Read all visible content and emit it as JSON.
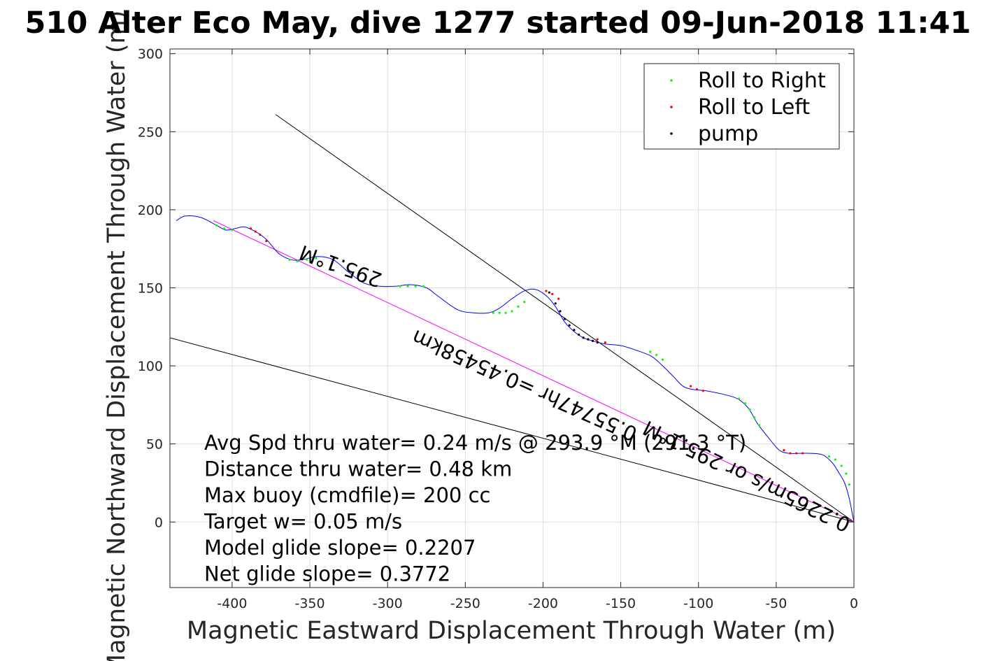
{
  "chart_data": {
    "type": "scatter",
    "title": "510 Alter Eco May, dive 1277 started 09-Jun-2018 11:41",
    "xlabel": "Magnetic Eastward Displacement Through Water (m)",
    "ylabel": "Magnetic Northward Displacement Through Water (m)",
    "xlim": [
      -440,
      0
    ],
    "ylim": [
      -42,
      303
    ],
    "xticks": [
      -400,
      -350,
      -300,
      -250,
      -200,
      -150,
      -100,
      -50,
      0
    ],
    "yticks": [
      0,
      50,
      100,
      150,
      200,
      250,
      300
    ],
    "grid": true,
    "legend_position": "top-right",
    "legend": [
      {
        "label": "Roll to Right",
        "color": "#00ff00"
      },
      {
        "label": "Roll to Left",
        "color": "#ff0000"
      },
      {
        "label": "pump",
        "color": "#000000"
      }
    ],
    "series": [
      {
        "name": "track",
        "kind": "line",
        "color": "#0000ff",
        "x": [
          -436,
          -430,
          -420,
          -410,
          -404,
          -398,
          -392,
          -385,
          -378,
          -370,
          -362,
          -355,
          -345,
          -335,
          -325,
          -315,
          -305,
          -295,
          -285,
          -275,
          -268,
          -255,
          -245,
          -235,
          -228,
          -220,
          -212,
          -205,
          -198,
          -192,
          -186,
          -180,
          -174,
          -168,
          -160,
          -150,
          -140,
          -130,
          -122,
          -116,
          -110,
          -104,
          -95,
          -85,
          -75,
          -68,
          -62,
          -55,
          -48,
          -42,
          -35,
          -28,
          -20,
          -14,
          -10,
          -6,
          -3,
          -1,
          0
        ],
        "y": [
          193,
          196,
          195,
          190,
          187,
          188,
          189,
          186,
          181,
          172,
          168,
          168,
          170,
          168,
          160,
          153,
          151,
          151,
          152,
          150,
          145,
          136,
          134,
          134,
          137,
          143,
          148,
          149,
          145,
          138,
          128,
          122,
          118,
          116,
          114,
          113,
          110,
          106,
          99,
          93,
          87,
          85,
          84,
          82,
          79,
          73,
          63,
          54,
          46,
          44,
          44,
          44,
          43,
          38,
          32,
          25,
          15,
          5,
          0
        ]
      },
      {
        "name": "Roll to Right",
        "kind": "points",
        "color": "#00ff00",
        "x": [
          -410,
          -405,
          -400,
          -363,
          -358,
          -352,
          -346,
          -292,
          -287,
          -282,
          -277,
          -232,
          -228,
          -224,
          -220,
          -216,
          -212,
          -131,
          -127,
          -123,
          -74,
          -70,
          -67,
          -64,
          -61,
          -16,
          -12,
          -8,
          -5,
          -3
        ],
        "y": [
          190,
          188,
          187,
          168,
          167,
          168,
          169,
          151,
          151,
          151,
          151,
          134,
          134,
          134,
          135,
          138,
          141,
          109,
          107,
          104,
          79,
          76,
          72,
          67,
          62,
          42,
          40,
          36,
          31,
          24
        ]
      },
      {
        "name": "Roll to Left",
        "kind": "points",
        "color": "#ff0000",
        "x": [
          -388,
          -385,
          -382,
          -378,
          -198,
          -194,
          -190,
          -165,
          -160,
          -105,
          -101,
          -97,
          -45,
          -41,
          -37,
          -33
        ],
        "y": [
          188,
          186,
          184,
          180,
          148,
          146,
          143,
          117,
          115,
          87,
          85,
          84,
          46,
          44,
          44,
          44
        ],
        "extra_line": {
          "x": [
            -412,
            0
          ],
          "y": [
            193,
            0
          ],
          "color": "#ff00ff"
        }
      },
      {
        "name": "pump",
        "kind": "points",
        "color": "#000000",
        "x": [
          -196,
          -192,
          -189,
          -186,
          -183,
          -180,
          -177,
          -174,
          -171,
          -168,
          -165
        ],
        "y": [
          147,
          140,
          135,
          130,
          126,
          123,
          120,
          118,
          117,
          116,
          115
        ]
      },
      {
        "name": "line1",
        "kind": "line",
        "color": "#000000",
        "x": [
          -372,
          0
        ],
        "y": [
          261,
          0
        ]
      },
      {
        "name": "line2",
        "kind": "line",
        "color": "#000000",
        "x": [
          -440,
          0
        ],
        "y": [
          118,
          0
        ]
      }
    ],
    "annotations": {
      "heading_label": "295.1°M",
      "track_label": "0.55747hr =0.45458km",
      "speed_label": "0.2265m/s or 295.1°M",
      "stats": [
        "Avg Spd thru water=  0.24 m/s @ 293.9 °M (291.3 °T)",
        "Distance thru water=  0.48 km",
        "Max buoy (cmdfile)= 200 cc",
        "Target w= 0.05 m/s",
        "Model glide slope= 0.2207",
        "Net glide slope= 0.3772"
      ]
    }
  }
}
